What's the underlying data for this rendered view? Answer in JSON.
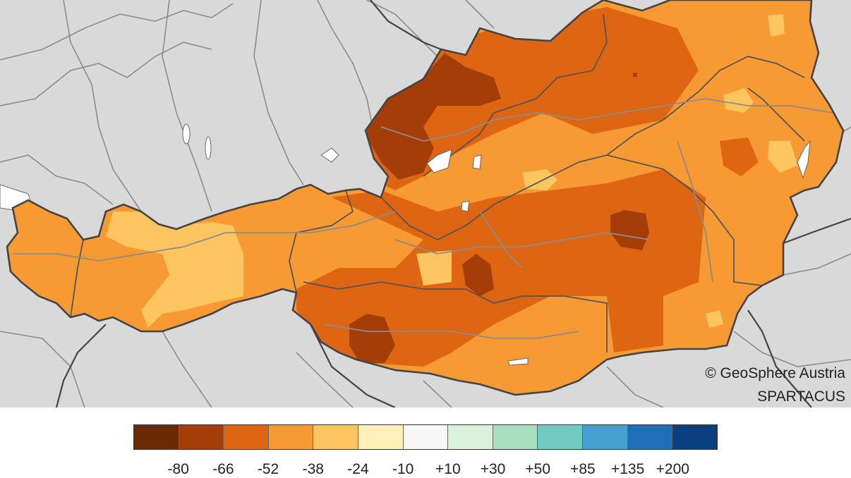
{
  "credit": {
    "copyright": "© GeoSphere Austria",
    "dataset": "SPARTACUS"
  },
  "legend": {
    "colors": [
      "#6b2a06",
      "#a53d08",
      "#de6512",
      "#f89a33",
      "#fcc560",
      "#fef0b8",
      "#f7f7f7",
      "#daf1da",
      "#a9dfbf",
      "#72cbc2",
      "#43a0d0",
      "#1f6eb8",
      "#0b3f80"
    ],
    "labels": [
      "-80",
      "-66",
      "-52",
      "-38",
      "-24",
      "-10",
      "+10",
      "+30",
      "+50",
      "+85",
      "+135",
      "+200"
    ]
  },
  "map": {
    "background_color": "#d9d9d9",
    "lakes_color": "#ffffff",
    "border_color": "#444444",
    "rivers_color": "#8c8c8c"
  }
}
